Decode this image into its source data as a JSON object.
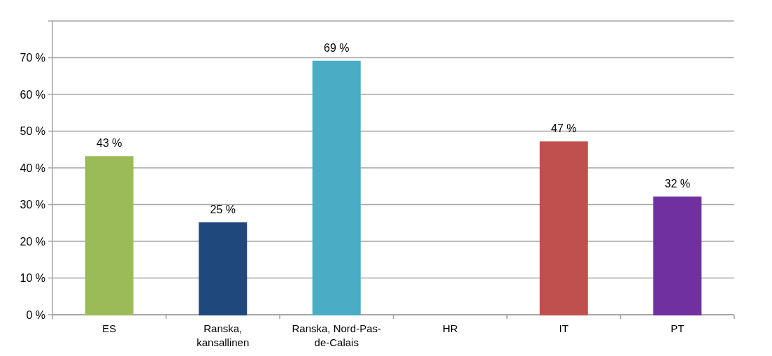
{
  "chart_data": {
    "type": "bar",
    "categories": [
      "ES",
      "Ranska, kansallinen",
      "Ranska, Nord-Pas-de-Calais",
      "HR",
      "IT",
      "PT"
    ],
    "values": [
      43,
      25,
      69,
      0,
      47,
      32
    ],
    "colors": [
      "#9bbb59",
      "#1f497d",
      "#4bacc6",
      "#c8c800",
      "#c0504d",
      "#7030a0"
    ],
    "value_labels": [
      "43 %",
      "25 %",
      "69 %",
      null,
      "47 %",
      "32 %"
    ],
    "ylim": [
      0,
      80
    ],
    "yticks": [
      {
        "value": 0,
        "label": "0 %"
      },
      {
        "value": 10,
        "label": "10 %"
      },
      {
        "value": 20,
        "label": "20 %"
      },
      {
        "value": 30,
        "label": "30 %"
      },
      {
        "value": 40,
        "label": "40 %"
      },
      {
        "value": 50,
        "label": "50 %"
      },
      {
        "value": 60,
        "label": "60 %"
      },
      {
        "value": 70,
        "label": "70 %"
      },
      {
        "value": 80,
        "label": null
      }
    ],
    "grid": "y"
  }
}
